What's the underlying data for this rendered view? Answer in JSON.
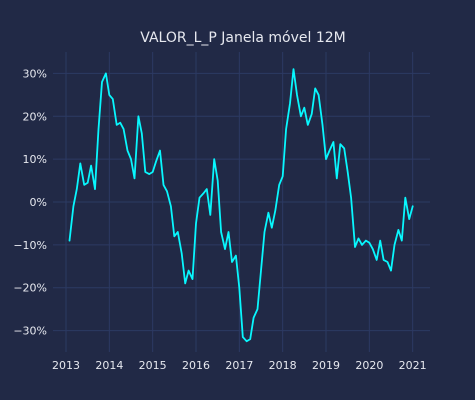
{
  "chart_data": {
    "type": "line",
    "title": "VALOR_L_P Janela móvel 12M",
    "xlabel": "",
    "ylabel": "",
    "xlim": [
      2012.7,
      2021.4
    ],
    "ylim": [
      -0.35,
      0.35
    ],
    "grid": true,
    "legend": "none",
    "xticks": [
      2013,
      2014,
      2015,
      2016,
      2017,
      2018,
      2019,
      2020,
      2021
    ],
    "xtick_labels": [
      "2013",
      "2014",
      "2015",
      "2016",
      "2017",
      "2018",
      "2019",
      "2020",
      "2021"
    ],
    "yticks": [
      0.3,
      0.2,
      0.1,
      0.0,
      -0.1,
      -0.2,
      -0.3
    ],
    "ytick_labels": [
      "30%",
      "20%",
      "10%",
      "0%",
      "−10%",
      "−20%",
      "−30%"
    ],
    "colors": {
      "background": "#212946",
      "grid": "#2c3a63",
      "line": "#08f7fe",
      "text": "#e6e8ef"
    },
    "series": [
      {
        "x": [
          2013.08,
          2013.17,
          2013.25,
          2013.33,
          2013.42,
          2013.5,
          2013.58,
          2013.67,
          2013.75,
          2013.83,
          2013.92,
          2014.0,
          2014.08,
          2014.17,
          2014.25,
          2014.33,
          2014.42,
          2014.5,
          2014.58,
          2014.67,
          2014.75,
          2014.83,
          2014.92,
          2015.0,
          2015.08,
          2015.17,
          2015.25,
          2015.33,
          2015.42,
          2015.5,
          2015.58,
          2015.67,
          2015.75,
          2015.83,
          2015.92,
          2016.0,
          2016.08,
          2016.17,
          2016.25,
          2016.33,
          2016.42,
          2016.5,
          2016.58,
          2016.67,
          2016.75,
          2016.83,
          2016.92,
          2017.0,
          2017.08,
          2017.17,
          2017.25,
          2017.33,
          2017.42,
          2017.5,
          2017.58,
          2017.67,
          2017.75,
          2017.83,
          2017.92,
          2018.0,
          2018.08,
          2018.17,
          2018.25,
          2018.33,
          2018.42,
          2018.5,
          2018.58,
          2018.67,
          2018.75,
          2018.83,
          2018.92,
          2019.0,
          2019.08,
          2019.17,
          2019.25,
          2019.33,
          2019.42,
          2019.5,
          2019.58,
          2019.67,
          2019.75,
          2019.83,
          2019.92,
          2020.0,
          2020.08,
          2020.17,
          2020.25,
          2020.33,
          2020.42,
          2020.5,
          2020.58,
          2020.67,
          2020.75,
          2020.83,
          2020.92,
          2021.0
        ],
        "y": [
          -0.09,
          -0.01,
          0.03,
          0.09,
          0.04,
          0.045,
          0.085,
          0.03,
          0.17,
          0.28,
          0.3,
          0.25,
          0.24,
          0.18,
          0.185,
          0.17,
          0.12,
          0.1,
          0.055,
          0.2,
          0.16,
          0.07,
          0.065,
          0.07,
          0.095,
          0.12,
          0.04,
          0.025,
          -0.01,
          -0.08,
          -0.07,
          -0.12,
          -0.19,
          -0.16,
          -0.18,
          -0.05,
          0.01,
          0.02,
          0.03,
          -0.03,
          0.1,
          0.05,
          -0.07,
          -0.11,
          -0.07,
          -0.14,
          -0.125,
          -0.2,
          -0.315,
          -0.325,
          -0.32,
          -0.27,
          -0.25,
          -0.16,
          -0.07,
          -0.025,
          -0.06,
          -0.02,
          0.04,
          0.06,
          0.17,
          0.23,
          0.31,
          0.25,
          0.2,
          0.22,
          0.18,
          0.205,
          0.265,
          0.25,
          0.18,
          0.1,
          0.12,
          0.14,
          0.055,
          0.135,
          0.125,
          0.07,
          0.01,
          -0.105,
          -0.085,
          -0.1,
          -0.09,
          -0.095,
          -0.11,
          -0.135,
          -0.09,
          -0.135,
          -0.14,
          -0.16,
          -0.1,
          -0.065,
          -0.09,
          0.01,
          -0.04,
          -0.01
        ]
      }
    ]
  }
}
